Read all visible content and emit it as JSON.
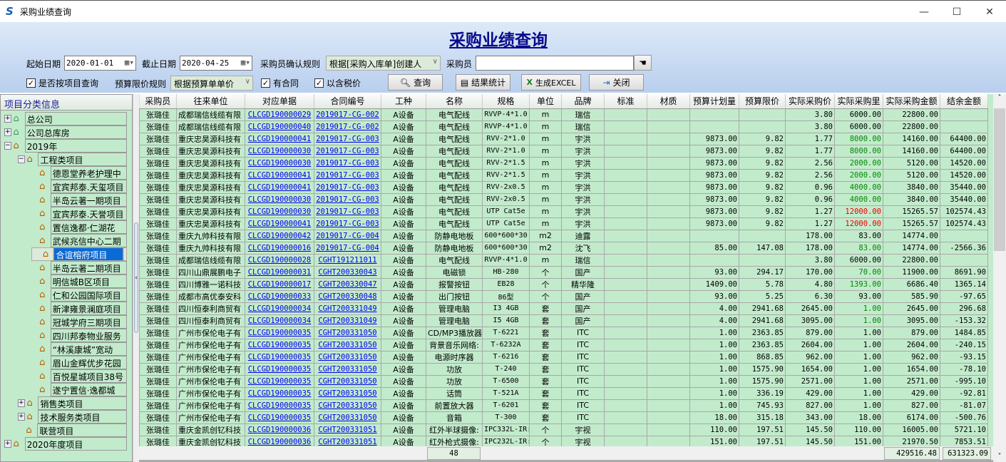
{
  "window": {
    "title": "采购业绩查询",
    "minimize": "—",
    "maximize": "☐",
    "close": "✕"
  },
  "header": {
    "title": "采购业绩查询"
  },
  "filters": {
    "start_label": "起始日期",
    "start_value": "2020-01-01",
    "end_label": "截止日期",
    "end_value": "2020-04-25",
    "rule_label": "采购员确认规则",
    "rule_value": "根据[采购入库单]创建人",
    "buyer_label": "采购员",
    "buyer_value": "",
    "by_project_label": "是否按项目查询",
    "by_project_checked": true,
    "limit_rule_label": "预算限价规则",
    "limit_rule_value": "根据预算单单价",
    "has_contract_label": "有合同",
    "has_contract_checked": true,
    "tax_label": "以含税价",
    "tax_checked": true
  },
  "buttons": {
    "query": "查询",
    "stats": "结果统计",
    "excel": "生成EXCEL",
    "close": "关闭"
  },
  "tree": {
    "header": "项目分类信息",
    "nodes": [
      {
        "label": "总公司",
        "level": 0,
        "exp": "+",
        "green": true
      },
      {
        "label": "公司总库房",
        "level": 0,
        "exp": "+",
        "green": true
      },
      {
        "label": "2019年",
        "level": 0,
        "exp": "−"
      },
      {
        "label": "工程类项目",
        "level": 1,
        "exp": "−"
      },
      {
        "label": "德恩堂养老护理中",
        "level": 2
      },
      {
        "label": "宜宾邦泰.天玺项目",
        "level": 2
      },
      {
        "label": "半岛云著一期项目",
        "level": 2
      },
      {
        "label": "宜宾邦泰.天誉项目",
        "level": 2
      },
      {
        "label": "置信逸都·仁湖花",
        "level": 2
      },
      {
        "label": "武候兆信中心二期",
        "level": 2
      },
      {
        "label": "合谊榕府项目",
        "level": 2,
        "selected": true
      },
      {
        "label": "半岛云著二期项目",
        "level": 2
      },
      {
        "label": "明信城B区项目",
        "level": 2
      },
      {
        "label": "仁和公园国际项目",
        "level": 2
      },
      {
        "label": "新津雍景澜庭项目",
        "level": 2
      },
      {
        "label": "冠城学府三期项目",
        "level": 2
      },
      {
        "label": "四川邦泰物业服务",
        "level": 2
      },
      {
        "label": "“林溪康城”宽动",
        "level": 2
      },
      {
        "label": "眉山金辉优步花园",
        "level": 2
      },
      {
        "label": "百悦星城项目38号",
        "level": 2
      },
      {
        "label": "遂宁置信·逸都城",
        "level": 2
      },
      {
        "label": "销售类项目",
        "level": 1,
        "exp": "+"
      },
      {
        "label": "技术服务类项目",
        "level": 1,
        "exp": "+"
      },
      {
        "label": "联营项目",
        "level": 1
      },
      {
        "label": "2020年度项目",
        "level": 0,
        "exp": "+"
      }
    ]
  },
  "table": {
    "columns": [
      "采购员",
      "往来单位",
      "对应单据",
      "合同编号",
      "工种",
      "名称",
      "规格",
      "单位",
      "品牌",
      "标准",
      "材质",
      "预算计划量",
      "预算限价",
      "实际采购价",
      "实际采购里",
      "实际采购金额",
      "结余金额"
    ],
    "rows": [
      [
        "张璐佳",
        "成都瑞信线缆有限",
        "CLCGD190000029",
        "2019017-CG-002",
        "A设备",
        "电气配线",
        "RVVP-4*1.0",
        "m",
        "瑞信",
        "",
        "",
        "",
        "",
        "3.80",
        "6000.00",
        "22800.00",
        ""
      ],
      [
        "张璐佳",
        "成都瑞信线缆有限",
        "CLCGD190000040",
        "2019017-CG-002",
        "A设备",
        "电气配线",
        "RVVP-4*1.0",
        "m",
        "瑞信",
        "",
        "",
        "",
        "",
        "3.80",
        "6000.00",
        "22800.00",
        ""
      ],
      [
        "张璐佳",
        "重庆忠昊源科技有",
        "CLCGD190000041",
        "2019017-CG-003",
        "A设备",
        "电气配线",
        "RVV-2*1.0",
        "m",
        "宇洪",
        "",
        "",
        "9873.00",
        "9.82",
        "1.77",
        "8000.00",
        "14160.00",
        "64400.00"
      ],
      [
        "张璐佳",
        "重庆忠昊源科技有",
        "CLCGD190000030",
        "2019017-CG-003",
        "A设备",
        "电气配线",
        "RVV-2*1.0",
        "m",
        "宇洪",
        "",
        "",
        "9873.00",
        "9.82",
        "1.77",
        "8000.00",
        "14160.00",
        "64400.00"
      ],
      [
        "张璐佳",
        "重庆忠昊源科技有",
        "CLCGD190000030",
        "2019017-CG-003",
        "A设备",
        "电气配线",
        "RVV-2*1.5",
        "m",
        "宇洪",
        "",
        "",
        "9873.00",
        "9.82",
        "2.56",
        "2000.00",
        "5120.00",
        "14520.00"
      ],
      [
        "张璐佳",
        "重庆忠昊源科技有",
        "CLCGD190000041",
        "2019017-CG-003",
        "A设备",
        "电气配线",
        "RVV-2*1.5",
        "m",
        "宇洪",
        "",
        "",
        "9873.00",
        "9.82",
        "2.56",
        "2000.00",
        "5120.00",
        "14520.00"
      ],
      [
        "张璐佳",
        "重庆忠昊源科技有",
        "CLCGD190000041",
        "2019017-CG-003",
        "A设备",
        "电气配线",
        "RVV-2x0.5",
        "m",
        "宇洪",
        "",
        "",
        "9873.00",
        "9.82",
        "0.96",
        "4000.00",
        "3840.00",
        "35440.00"
      ],
      [
        "张璐佳",
        "重庆忠昊源科技有",
        "CLCGD190000030",
        "2019017-CG-003",
        "A设备",
        "电气配线",
        "RVV-2x0.5",
        "m",
        "宇洪",
        "",
        "",
        "9873.00",
        "9.82",
        "0.96",
        "4000.00",
        "3840.00",
        "35440.00"
      ],
      [
        "张璐佳",
        "重庆忠昊源科技有",
        "CLCGD190000030",
        "2019017-CG-003",
        "A设备",
        "电气配线",
        "UTP Cat5e",
        "m",
        "宇洪",
        "",
        "",
        "9873.00",
        "9.82",
        "1.27",
        "12000.00",
        "15265.57",
        "102574.43"
      ],
      [
        "张璐佳",
        "重庆忠昊源科技有",
        "CLCGD190000041",
        "2019017-CG-003",
        "A设备",
        "电气配线",
        "UTP Cat5e",
        "m",
        "宇洪",
        "",
        "",
        "9873.00",
        "9.82",
        "1.27",
        "12000.00",
        "15265.57",
        "102574.43"
      ],
      [
        "张璐佳",
        "重庆九帅科技有限",
        "CLCGD190000042",
        "2019017-CG-004",
        "A设备",
        "防静电地板",
        "600*600*30",
        "m2",
        "迪露",
        "",
        "",
        "",
        "",
        "178.00",
        "83.00",
        "14774.00",
        ""
      ],
      [
        "张璐佳",
        "重庆九帅科技有限",
        "CLCGD190000016",
        "2019017-CG-004",
        "A设备",
        "防静电地板",
        "600*600*30",
        "m2",
        "沈飞",
        "",
        "",
        "85.00",
        "147.08",
        "178.00",
        "83.00",
        "14774.00",
        "-2566.36"
      ],
      [
        "张璐佳",
        "成都瑞信线缆有限",
        "CLCGD190000028",
        "CGHT191211011",
        "A设备",
        "电气配线",
        "RVVP-4*1.0",
        "m",
        "瑞信",
        "",
        "",
        "",
        "",
        "3.80",
        "6000.00",
        "22800.00",
        ""
      ],
      [
        "张璐佳",
        "四川山鼎展鹏电子",
        "CLCGD190000031",
        "CGHT200330043",
        "A设备",
        "电磁锁",
        "HB-280",
        "个",
        "国产",
        "",
        "",
        "93.00",
        "294.17",
        "170.00",
        "70.00",
        "11900.00",
        "8691.90"
      ],
      [
        "张璐佳",
        "四川博雅一诺科技",
        "CLCGD190000017",
        "CGHT200330047",
        "A设备",
        "报警按钮",
        "EB28",
        "个",
        "精华隆",
        "",
        "",
        "1409.00",
        "5.78",
        "4.80",
        "1393.00",
        "6686.40",
        "1365.14"
      ],
      [
        "张璐佳",
        "成都市高优泰安科",
        "CLCGD190000033",
        "CGHT200330048",
        "A设备",
        "出门按钮",
        "86型",
        "个",
        "国产",
        "",
        "",
        "93.00",
        "5.25",
        "6.30",
        "93.00",
        "585.90",
        "-97.65"
      ],
      [
        "张璐佳",
        "四川恒泰利商贸有",
        "CLCGD190000034",
        "CGHT200331049",
        "A设备",
        "管理电脑",
        "I3 4GB",
        "套",
        "国产",
        "",
        "",
        "4.00",
        "2941.68",
        "2645.00",
        "1.00",
        "2645.00",
        "296.68"
      ],
      [
        "张璐佳",
        "四川恒泰利商贸有",
        "CLCGD190000034",
        "CGHT200331049",
        "A设备",
        "管理电脑",
        "I5 4GB",
        "套",
        "国产",
        "",
        "",
        "4.00",
        "2941.68",
        "3095.00",
        "1.00",
        "3095.00",
        "-153.32"
      ],
      [
        "张璐佳",
        "广州市保伦电子有",
        "CLCGD190000035",
        "CGHT200331050",
        "A设备",
        "CD/MP3播放器",
        "T-6221",
        "套",
        "ITC",
        "",
        "",
        "1.00",
        "2363.85",
        "879.00",
        "1.00",
        "879.00",
        "1484.85"
      ],
      [
        "张璐佳",
        "广州市保伦电子有",
        "CLCGD190000035",
        "CGHT200331050",
        "A设备",
        "背景音乐网络:",
        "T-6232A",
        "套",
        "ITC",
        "",
        "",
        "1.00",
        "2363.85",
        "2604.00",
        "1.00",
        "2604.00",
        "-240.15"
      ],
      [
        "张璐佳",
        "广州市保伦电子有",
        "CLCGD190000035",
        "CGHT200331050",
        "A设备",
        "电源时序器",
        "T-6216",
        "套",
        "ITC",
        "",
        "",
        "1.00",
        "868.85",
        "962.00",
        "1.00",
        "962.00",
        "-93.15"
      ],
      [
        "张璐佳",
        "广州市保伦电子有",
        "CLCGD190000035",
        "CGHT200331050",
        "A设备",
        "功放",
        "T-240",
        "套",
        "ITC",
        "",
        "",
        "1.00",
        "1575.90",
        "1654.00",
        "1.00",
        "1654.00",
        "-78.10"
      ],
      [
        "张璐佳",
        "广州市保伦电子有",
        "CLCGD190000035",
        "CGHT200331050",
        "A设备",
        "功放",
        "T-6500",
        "套",
        "ITC",
        "",
        "",
        "1.00",
        "1575.90",
        "2571.00",
        "1.00",
        "2571.00",
        "-995.10"
      ],
      [
        "张璐佳",
        "广州市保伦电子有",
        "CLCGD190000035",
        "CGHT200331050",
        "A设备",
        "话筒",
        "T-521A",
        "套",
        "ITC",
        "",
        "",
        "1.00",
        "336.19",
        "429.00",
        "1.00",
        "429.00",
        "-92.81"
      ],
      [
        "张璐佳",
        "广州市保伦电子有",
        "CLCGD190000035",
        "CGHT200331050",
        "A设备",
        "前置放大器",
        "T-6201",
        "套",
        "ITC",
        "",
        "",
        "1.00",
        "745.93",
        "827.00",
        "1.00",
        "827.00",
        "-81.07"
      ],
      [
        "张璐佳",
        "广州市保伦电子有",
        "CLCGD190000035",
        "CGHT200331050",
        "A设备",
        "音箱",
        "T-300",
        "套",
        "ITC",
        "",
        "",
        "18.00",
        "315.18",
        "343.00",
        "18.00",
        "6174.00",
        "-500.76"
      ],
      [
        "张璐佳",
        "重庆金凯创钇科技",
        "CLCGD190000036",
        "CGHT200331051",
        "A设备",
        "红外半球摄像:",
        "IPC332L-IR:",
        "个",
        "宇视",
        "",
        "",
        "110.00",
        "197.51",
        "145.50",
        "110.00",
        "16005.00",
        "5721.10"
      ],
      [
        "张璐佳",
        "重庆金凯创钇科技",
        "CLCGD190000036",
        "CGHT200331051",
        "A设备",
        "红外枪式摄像:",
        "IPC232L-IR:",
        "个",
        "宇视",
        "",
        "",
        "151.00",
        "197.51",
        "145.50",
        "151.00",
        "21970.50",
        "7853.51"
      ]
    ],
    "qty_colors": [
      "black",
      "black",
      "green",
      "green",
      "green",
      "green",
      "green",
      "green",
      "red",
      "red",
      "black",
      "green",
      "black",
      "green",
      "green",
      "black",
      "green",
      "green",
      "black",
      "black",
      "black",
      "black",
      "black",
      "black",
      "black",
      "black",
      "black",
      "black"
    ]
  },
  "footer": {
    "count": "48",
    "total_amount": "429516.48",
    "total_balance": "631323.09"
  },
  "colors": {
    "grid_bg": "#c2ebcc",
    "link": "#0000ee",
    "green": "#008800",
    "red": "#ee0000",
    "selected": "#0a6ad6"
  }
}
